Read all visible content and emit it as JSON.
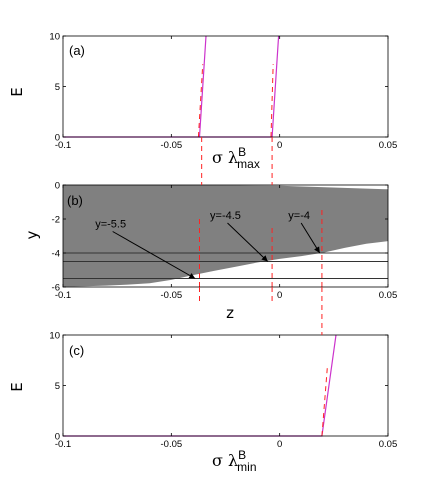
{
  "chart_data": [
    {
      "panel": "(a)",
      "type": "line",
      "ylabel": "E",
      "xlabel": {
        "symbol": "σ λ",
        "sup": "B",
        "sub": "max"
      },
      "xlim": [
        -0.1,
        0.05
      ],
      "ylim": [
        0,
        10
      ],
      "xticks": [
        "-0.1",
        "-0.05",
        "0",
        "0.05"
      ],
      "xtick_values": [
        -0.1,
        -0.05,
        0,
        0.05
      ],
      "yticks": [
        "0",
        "5",
        "10"
      ],
      "ytick_values": [
        0,
        5,
        10
      ],
      "series": [
        {
          "color": "#cc33cc",
          "x": [
            -0.1,
            -0.037,
            -0.034
          ],
          "y": [
            0,
            0,
            10
          ]
        },
        {
          "color": "#cc33cc",
          "x": [
            -0.037,
            -0.0035,
            -0.0005
          ],
          "y": [
            0,
            0,
            10
          ]
        }
      ],
      "dashed_lines": [
        {
          "color": "#ff2222",
          "x": [
            -0.0375,
            -0.0355
          ],
          "y": [
            0,
            7.2
          ]
        },
        {
          "color": "#ff2222",
          "x": [
            -0.004,
            -0.003
          ],
          "y": [
            0,
            7.2
          ]
        }
      ]
    },
    {
      "panel": "(b)",
      "type": "area",
      "ylabel": "y",
      "xlabel": "z",
      "xlim": [
        -0.1,
        0.05
      ],
      "ylim": [
        -6,
        0
      ],
      "xticks": [
        "-0.1",
        "-0.05",
        "0",
        "0.05"
      ],
      "xtick_values": [
        -0.1,
        -0.05,
        0,
        0.05
      ],
      "yticks": [
        "-6",
        "-4",
        "-2",
        "0"
      ],
      "ytick_values": [
        -6,
        -4,
        -2,
        0
      ],
      "fill_color": "#808080",
      "boundary": {
        "z": [
          -0.1,
          -0.09,
          -0.08,
          -0.07,
          -0.06,
          -0.05,
          -0.04,
          -0.03,
          -0.02,
          -0.01,
          0,
          0.01,
          0.02,
          0.03,
          0.04,
          0.05
        ],
        "y": [
          -5.98,
          -5.96,
          -5.92,
          -5.86,
          -5.78,
          -5.58,
          -5.3,
          -5.04,
          -4.8,
          -4.55,
          -4.35,
          -4.18,
          -3.98,
          -3.7,
          -3.45,
          -3.3
        ]
      },
      "top_edge": {
        "z": [
          -0.1,
          -0.05,
          0,
          0.05
        ],
        "y": [
          0,
          0,
          -0.05,
          -0.25
        ]
      },
      "hlines": [
        -4,
        -4.5,
        -5.5
      ],
      "annotations": [
        {
          "text": "y=-5.5",
          "label_z": -0.078,
          "label_y": -2.5,
          "arrow_z": -0.039,
          "arrow_y": -5.5
        },
        {
          "text": "y=-4.5",
          "label_z": -0.025,
          "label_y": -2.0,
          "arrow_z": -0.0055,
          "arrow_y": -4.5
        },
        {
          "text": "y=-4",
          "label_z": 0.009,
          "label_y": -2.0,
          "arrow_z": 0.0185,
          "arrow_y": -4.0
        }
      ],
      "dashed_lines": [
        {
          "color": "#ff2222",
          "x": [
            -0.037,
            -0.037
          ],
          "y": [
            -6,
            -2.0
          ]
        },
        {
          "color": "#ff2222",
          "x": [
            -0.0035,
            -0.0035
          ],
          "y": [
            -6,
            -2.5
          ]
        },
        {
          "color": "#ff2222",
          "x": [
            0.0195,
            0.0195
          ],
          "y": [
            -6,
            -1.3
          ]
        }
      ]
    },
    {
      "panel": "(c)",
      "type": "line",
      "ylabel": "E",
      "xlabel": {
        "symbol": "σ λ",
        "sup": "B",
        "sub": "min"
      },
      "xlim": [
        -0.1,
        0.05
      ],
      "ylim": [
        0,
        10
      ],
      "xticks": [
        "-0.1",
        "-0.05",
        "0",
        "0.05"
      ],
      "xtick_values": [
        -0.1,
        -0.05,
        0,
        0.05
      ],
      "yticks": [
        "0",
        "5",
        "10"
      ],
      "ytick_values": [
        0,
        5,
        10
      ],
      "series": [
        {
          "color": "#cc33cc",
          "x": [
            -0.1,
            0.0195,
            0.026
          ],
          "y": [
            0,
            0,
            10
          ]
        }
      ],
      "dashed_lines": [
        {
          "color": "#ff2222",
          "x": [
            0.0195,
            0.022
          ],
          "y": [
            0,
            6.8
          ]
        }
      ]
    }
  ]
}
